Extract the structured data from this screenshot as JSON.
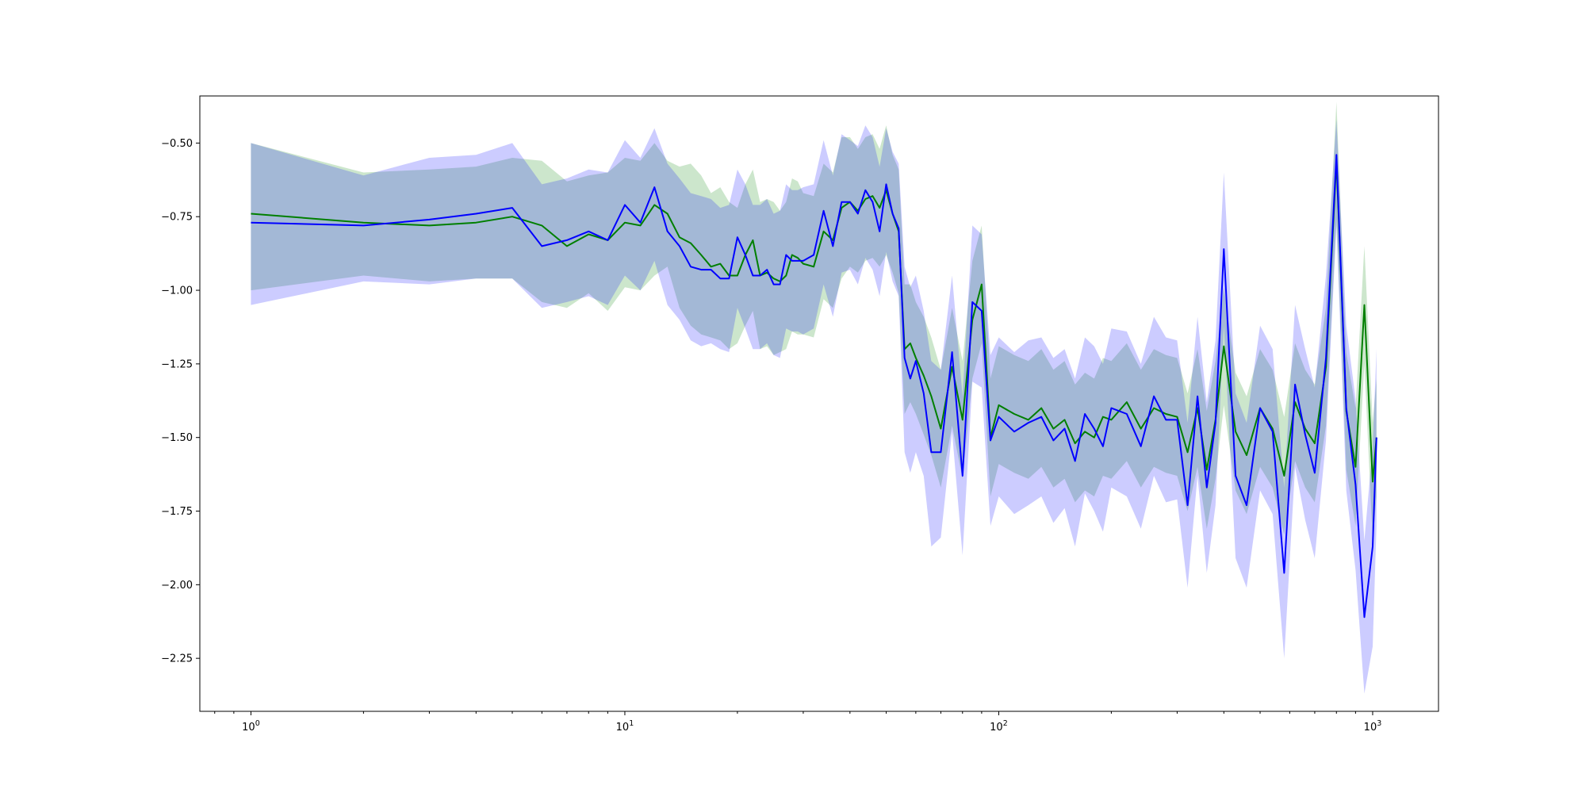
{
  "chart_data": {
    "type": "line",
    "title": "",
    "xlabel": "",
    "ylabel": "",
    "xscale": "log",
    "xlim": [
      0.73,
      1500
    ],
    "ylim": [
      -2.43,
      -0.34
    ],
    "grid": false,
    "legend": "none",
    "x_ticks": [
      {
        "value": 1,
        "base": "10",
        "exp": "0"
      },
      {
        "value": 10,
        "base": "10",
        "exp": "1"
      },
      {
        "value": 100,
        "base": "10",
        "exp": "2"
      },
      {
        "value": 1000,
        "base": "10",
        "exp": "3"
      }
    ],
    "y_ticks": [
      {
        "value": -0.5,
        "label": "−0.50"
      },
      {
        "value": -0.75,
        "label": "−0.75"
      },
      {
        "value": -1.0,
        "label": "−1.00"
      },
      {
        "value": -1.25,
        "label": "−1.25"
      },
      {
        "value": -1.5,
        "label": "−1.50"
      },
      {
        "value": -1.75,
        "label": "−1.75"
      },
      {
        "value": -2.0,
        "label": "−2.00"
      },
      {
        "value": -2.25,
        "label": "−2.25"
      }
    ],
    "series": [
      {
        "color": "#007f00",
        "band_color": "#008000",
        "band_opacity": 0.2,
        "x": [
          1,
          2,
          3,
          4,
          5,
          6,
          7,
          8,
          9,
          10,
          11,
          12,
          13,
          14,
          15,
          16,
          17,
          18,
          19,
          20,
          21,
          22,
          23,
          24,
          25,
          26,
          27,
          28,
          29,
          30,
          32,
          34,
          36,
          38,
          40,
          42,
          44,
          46,
          48,
          50,
          52,
          54,
          56,
          58,
          60,
          63,
          66,
          70,
          75,
          80,
          85,
          90,
          95,
          100,
          110,
          120,
          130,
          140,
          150,
          160,
          170,
          180,
          190,
          200,
          220,
          240,
          260,
          280,
          300,
          320,
          340,
          360,
          380,
          400,
          430,
          460,
          500,
          540,
          580,
          620,
          660,
          700,
          750,
          800,
          850,
          900,
          950,
          1000,
          1024
        ],
        "y": [
          -0.74,
          -0.77,
          -0.78,
          -0.77,
          -0.75,
          -0.78,
          -0.85,
          -0.81,
          -0.83,
          -0.77,
          -0.78,
          -0.71,
          -0.74,
          -0.82,
          -0.84,
          -0.88,
          -0.92,
          -0.91,
          -0.95,
          -0.95,
          -0.88,
          -0.83,
          -0.95,
          -0.94,
          -0.96,
          -0.97,
          -0.95,
          -0.88,
          -0.89,
          -0.91,
          -0.92,
          -0.8,
          -0.83,
          -0.72,
          -0.7,
          -0.73,
          -0.69,
          -0.68,
          -0.72,
          -0.66,
          -0.74,
          -0.8,
          -1.2,
          -1.18,
          -1.23,
          -1.29,
          -1.36,
          -1.47,
          -1.26,
          -1.44,
          -1.1,
          -0.98,
          -1.5,
          -1.39,
          -1.42,
          -1.44,
          -1.4,
          -1.47,
          -1.44,
          -1.52,
          -1.48,
          -1.5,
          -1.43,
          -1.44,
          -1.38,
          -1.47,
          -1.4,
          -1.42,
          -1.43,
          -1.55,
          -1.4,
          -1.61,
          -1.44,
          -1.19,
          -1.48,
          -1.56,
          -1.4,
          -1.47,
          -1.63,
          -1.38,
          -1.47,
          -1.52,
          -1.26,
          -0.56,
          -1.41,
          -1.6,
          -1.05,
          -1.65,
          -1.5
        ],
        "lower": [
          -1.0,
          -0.95,
          -0.97,
          -0.96,
          -0.96,
          -1.04,
          -1.06,
          -1.01,
          -1.07,
          -0.99,
          -1.0,
          -0.95,
          -0.92,
          -1.06,
          -1.12,
          -1.15,
          -1.16,
          -1.17,
          -1.2,
          -1.18,
          -1.12,
          -1.07,
          -1.2,
          -1.19,
          -1.22,
          -1.21,
          -1.2,
          -1.14,
          -1.15,
          -1.15,
          -1.16,
          -1.03,
          -1.06,
          -0.96,
          -0.92,
          -0.94,
          -0.9,
          -0.89,
          -0.92,
          -0.88,
          -0.94,
          -1.01,
          -1.42,
          -1.38,
          -1.42,
          -1.49,
          -1.56,
          -1.67,
          -1.46,
          -1.64,
          -1.3,
          -1.18,
          -1.7,
          -1.59,
          -1.62,
          -1.64,
          -1.6,
          -1.67,
          -1.64,
          -1.72,
          -1.68,
          -1.7,
          -1.63,
          -1.64,
          -1.58,
          -1.67,
          -1.6,
          -1.62,
          -1.63,
          -1.75,
          -1.6,
          -1.81,
          -1.64,
          -1.39,
          -1.68,
          -1.76,
          -1.6,
          -1.67,
          -1.83,
          -1.58,
          -1.67,
          -1.72,
          -1.46,
          -0.76,
          -1.61,
          -1.8,
          -1.25,
          -1.85,
          -1.7
        ],
        "upper": [
          -0.5,
          -0.6,
          -0.59,
          -0.58,
          -0.55,
          -0.56,
          -0.63,
          -0.61,
          -0.6,
          -0.55,
          -0.56,
          -0.5,
          -0.56,
          -0.58,
          -0.57,
          -0.61,
          -0.67,
          -0.65,
          -0.7,
          -0.72,
          -0.64,
          -0.59,
          -0.7,
          -0.69,
          -0.7,
          -0.73,
          -0.7,
          -0.62,
          -0.63,
          -0.67,
          -0.68,
          -0.57,
          -0.6,
          -0.48,
          -0.48,
          -0.52,
          -0.48,
          -0.47,
          -0.52,
          -0.44,
          -0.54,
          -0.59,
          -0.98,
          -0.98,
          -1.04,
          -1.09,
          -1.16,
          -1.27,
          -1.06,
          -1.24,
          -0.9,
          -0.78,
          -1.3,
          -1.19,
          -1.22,
          -1.24,
          -1.2,
          -1.27,
          -1.24,
          -1.32,
          -1.28,
          -1.3,
          -1.23,
          -1.24,
          -1.18,
          -1.27,
          -1.2,
          -1.22,
          -1.23,
          -1.35,
          -1.2,
          -1.41,
          -1.24,
          -0.99,
          -1.28,
          -1.36,
          -1.2,
          -1.27,
          -1.43,
          -1.18,
          -1.27,
          -1.32,
          -1.06,
          -0.36,
          -1.21,
          -1.4,
          -0.85,
          -1.45,
          -1.3
        ]
      },
      {
        "color": "#0000ff",
        "band_color": "#0000ff",
        "band_opacity": 0.2,
        "x": [
          1,
          2,
          3,
          4,
          5,
          6,
          7,
          8,
          9,
          10,
          11,
          12,
          13,
          14,
          15,
          16,
          17,
          18,
          19,
          20,
          21,
          22,
          23,
          24,
          25,
          26,
          27,
          28,
          29,
          30,
          32,
          34,
          36,
          38,
          40,
          42,
          44,
          46,
          48,
          50,
          52,
          54,
          56,
          58,
          60,
          63,
          66,
          70,
          75,
          80,
          85,
          90,
          95,
          100,
          110,
          120,
          130,
          140,
          150,
          160,
          170,
          180,
          190,
          200,
          220,
          240,
          260,
          280,
          300,
          320,
          340,
          360,
          380,
          400,
          430,
          460,
          500,
          540,
          580,
          620,
          660,
          700,
          750,
          800,
          850,
          900,
          950,
          1000,
          1024
        ],
        "y": [
          -0.77,
          -0.78,
          -0.76,
          -0.74,
          -0.72,
          -0.85,
          -0.83,
          -0.8,
          -0.83,
          -0.71,
          -0.77,
          -0.65,
          -0.8,
          -0.85,
          -0.92,
          -0.93,
          -0.93,
          -0.96,
          -0.96,
          -0.82,
          -0.88,
          -0.95,
          -0.95,
          -0.93,
          -0.98,
          -0.98,
          -0.88,
          -0.9,
          -0.9,
          -0.9,
          -0.88,
          -0.73,
          -0.85,
          -0.7,
          -0.7,
          -0.74,
          -0.66,
          -0.7,
          -0.8,
          -0.64,
          -0.74,
          -0.79,
          -1.23,
          -1.3,
          -1.24,
          -1.35,
          -1.55,
          -1.55,
          -1.21,
          -1.63,
          -1.04,
          -1.07,
          -1.51,
          -1.43,
          -1.48,
          -1.45,
          -1.43,
          -1.51,
          -1.47,
          -1.58,
          -1.42,
          -1.47,
          -1.53,
          -1.4,
          -1.42,
          -1.53,
          -1.36,
          -1.44,
          -1.44,
          -1.73,
          -1.36,
          -1.67,
          -1.45,
          -0.86,
          -1.63,
          -1.73,
          -1.4,
          -1.48,
          -1.96,
          -1.32,
          -1.49,
          -1.62,
          -1.23,
          -0.54,
          -1.4,
          -1.66,
          -2.11,
          -1.87,
          -1.5
        ],
        "lower": [
          -1.05,
          -0.97,
          -0.98,
          -0.96,
          -0.96,
          -1.06,
          -1.04,
          -1.02,
          -1.05,
          -0.95,
          -1.0,
          -0.9,
          -1.05,
          -1.1,
          -1.17,
          -1.19,
          -1.18,
          -1.2,
          -1.21,
          -1.06,
          -1.13,
          -1.2,
          -1.2,
          -1.18,
          -1.22,
          -1.23,
          -1.13,
          -1.14,
          -1.14,
          -1.15,
          -1.13,
          -0.98,
          -1.09,
          -0.94,
          -0.93,
          -0.98,
          -0.89,
          -0.93,
          -1.02,
          -0.87,
          -0.97,
          -1.02,
          -1.55,
          -1.62,
          -1.55,
          -1.63,
          -1.87,
          -1.84,
          -1.48,
          -1.9,
          -1.31,
          -1.33,
          -1.8,
          -1.7,
          -1.76,
          -1.73,
          -1.7,
          -1.79,
          -1.74,
          -1.87,
          -1.69,
          -1.75,
          -1.82,
          -1.67,
          -1.7,
          -1.81,
          -1.63,
          -1.72,
          -1.71,
          -2.01,
          -1.63,
          -1.96,
          -1.73,
          -1.12,
          -1.91,
          -2.01,
          -1.68,
          -1.76,
          -2.25,
          -1.6,
          -1.78,
          -1.91,
          -1.51,
          -0.78,
          -1.68,
          -1.95,
          -2.37,
          -2.21,
          -1.8
        ],
        "upper": [
          -0.5,
          -0.61,
          -0.55,
          -0.54,
          -0.5,
          -0.64,
          -0.62,
          -0.59,
          -0.6,
          -0.49,
          -0.55,
          -0.45,
          -0.57,
          -0.62,
          -0.67,
          -0.68,
          -0.69,
          -0.72,
          -0.71,
          -0.59,
          -0.64,
          -0.71,
          -0.71,
          -0.69,
          -0.74,
          -0.73,
          -0.64,
          -0.66,
          -0.66,
          -0.65,
          -0.64,
          -0.49,
          -0.61,
          -0.47,
          -0.49,
          -0.51,
          -0.44,
          -0.48,
          -0.58,
          -0.45,
          -0.53,
          -0.57,
          -0.92,
          -0.99,
          -0.95,
          -1.07,
          -1.24,
          -1.27,
          -0.95,
          -1.36,
          -0.78,
          -0.81,
          -1.22,
          -1.16,
          -1.21,
          -1.17,
          -1.16,
          -1.23,
          -1.2,
          -1.3,
          -1.16,
          -1.19,
          -1.25,
          -1.13,
          -1.14,
          -1.25,
          -1.09,
          -1.16,
          -1.17,
          -1.45,
          -1.09,
          -1.38,
          -1.17,
          -0.6,
          -1.35,
          -1.45,
          -1.12,
          -1.2,
          -1.67,
          -1.05,
          -1.2,
          -1.33,
          -0.95,
          -0.42,
          -1.12,
          -1.37,
          -1.85,
          -1.53,
          -1.2
        ]
      }
    ]
  }
}
